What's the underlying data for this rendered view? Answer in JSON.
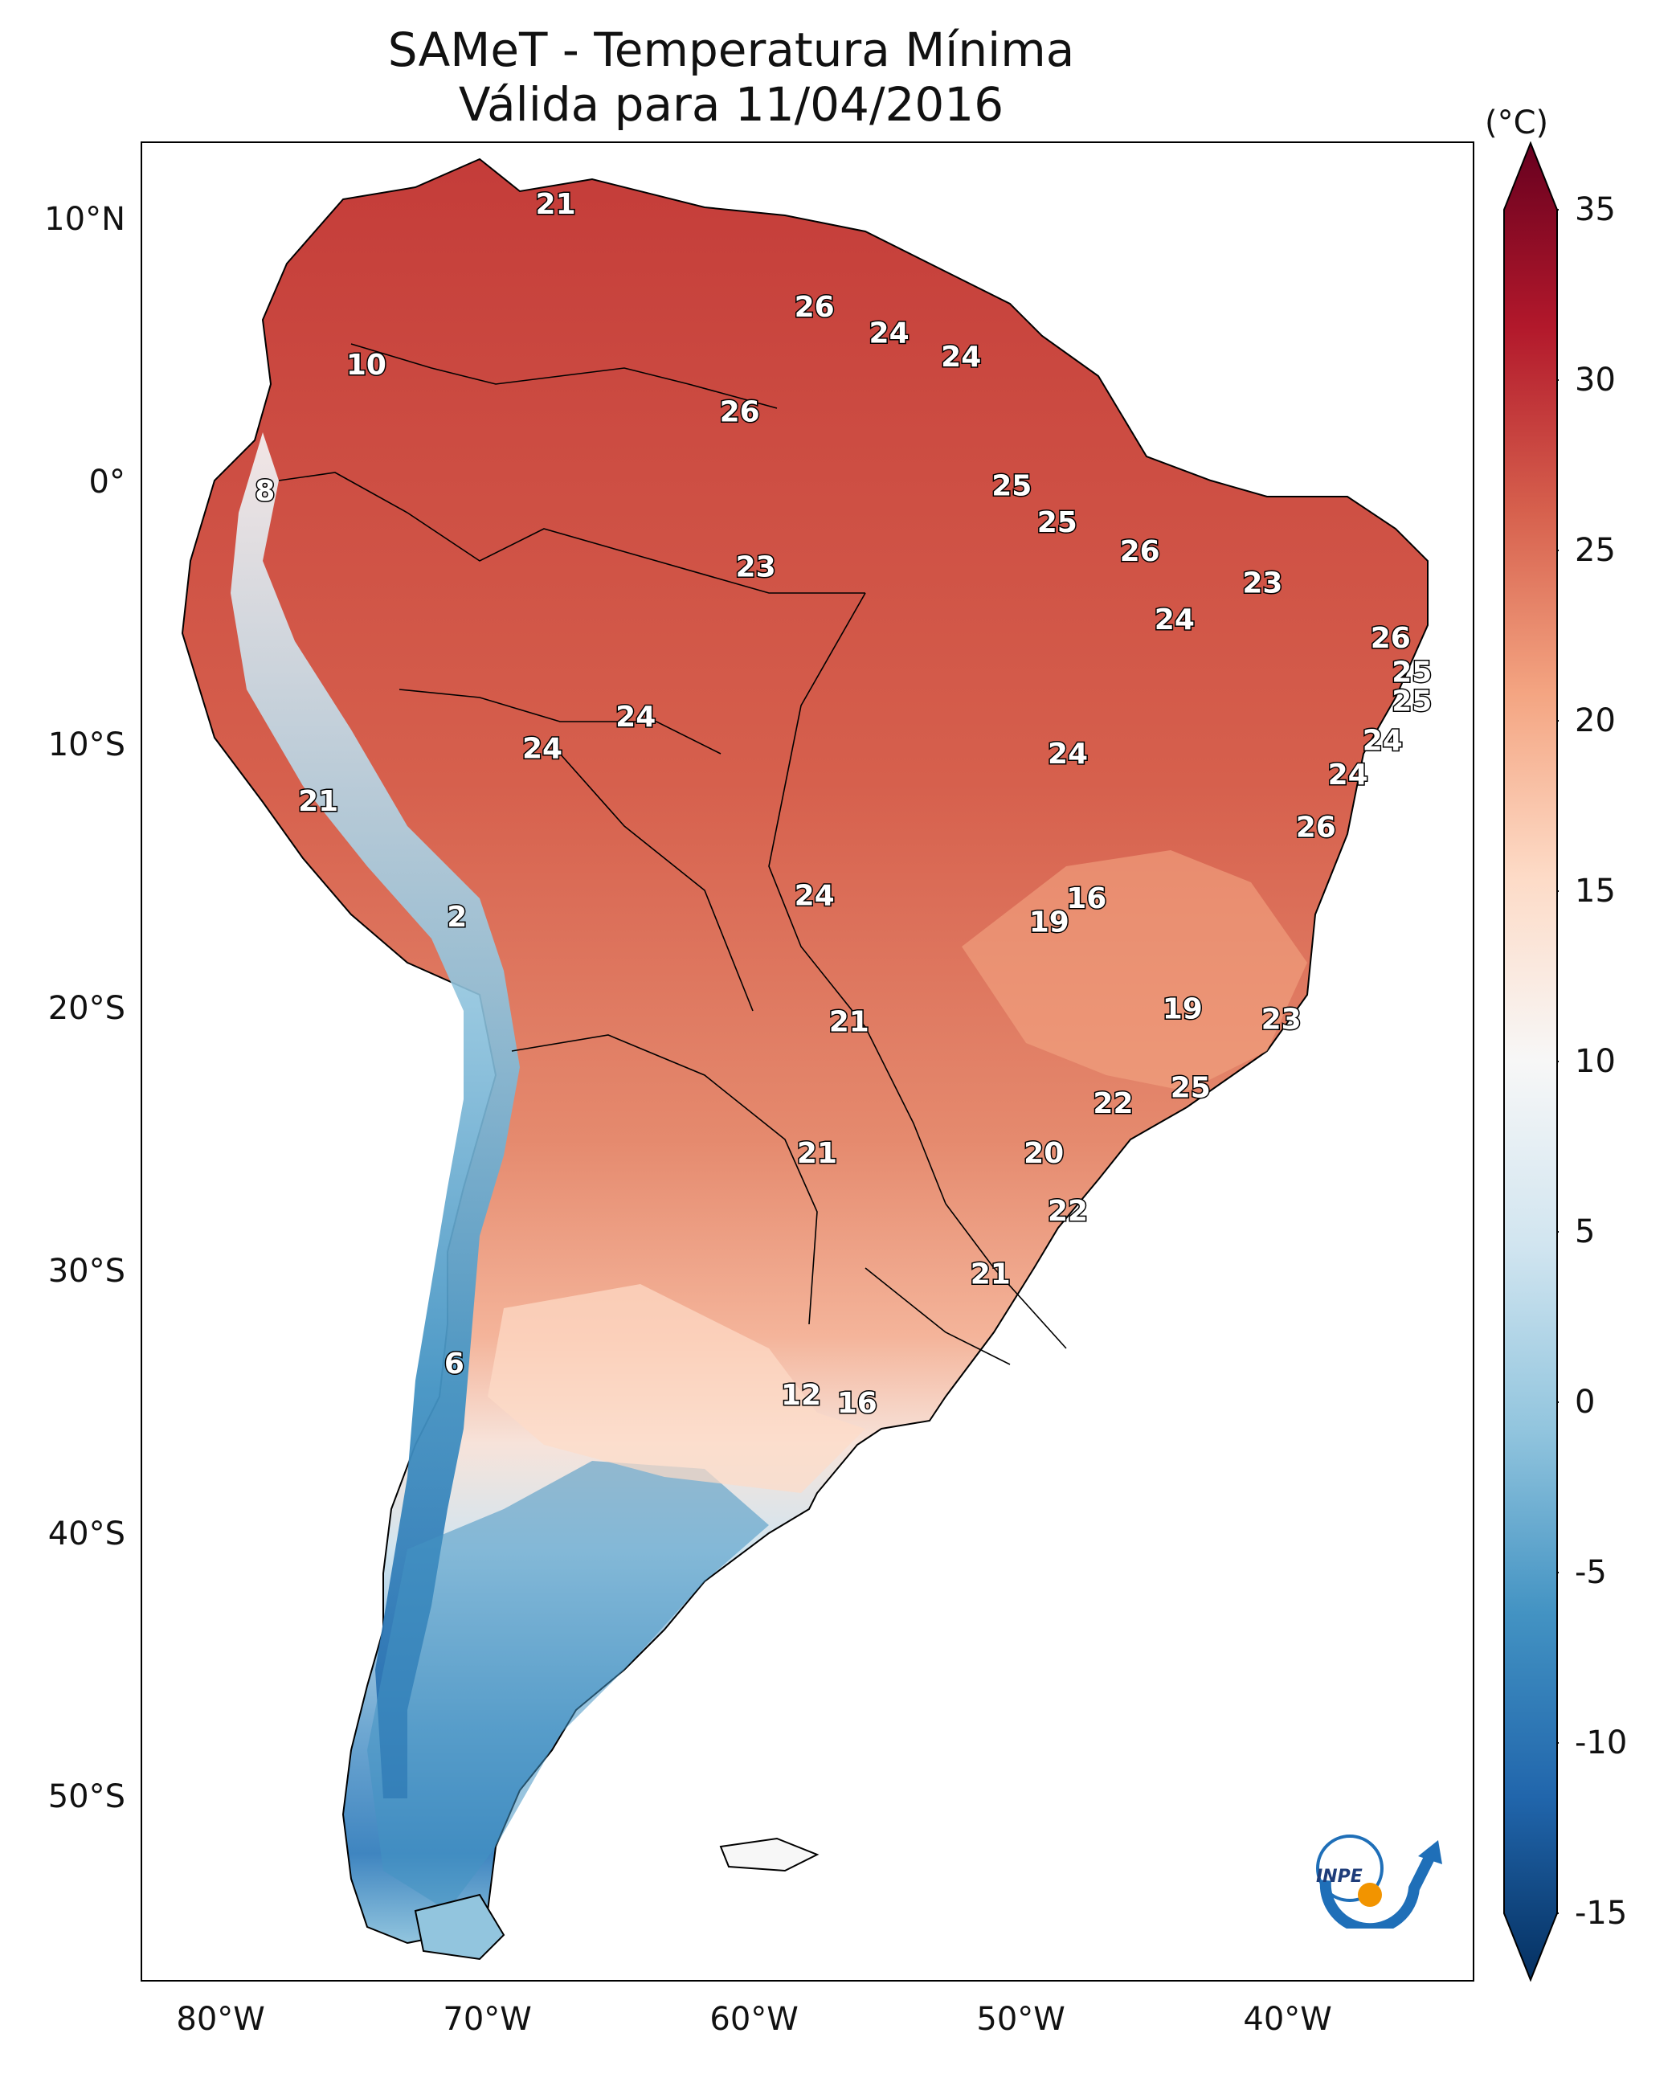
{
  "title": {
    "line1": "SAMeT - Temperatura Mínima",
    "line2": "Válida para 11/04/2016"
  },
  "map": {
    "lon_range": [
      -83,
      -33
    ],
    "lat_range": [
      -57,
      13
    ],
    "lat_ticks": [
      {
        "lat": 10,
        "label": "10°N"
      },
      {
        "lat": 0,
        "label": "0°"
      },
      {
        "lat": -10,
        "label": "10°S"
      },
      {
        "lat": -20,
        "label": "20°S"
      },
      {
        "lat": -30,
        "label": "30°S"
      },
      {
        "lat": -40,
        "label": "40°S"
      },
      {
        "lat": -50,
        "label": "50°S"
      }
    ],
    "lon_ticks": [
      {
        "lon": -80,
        "label": "80°W"
      },
      {
        "lon": -70,
        "label": "70°W"
      },
      {
        "lon": -60,
        "label": "60°W"
      },
      {
        "lon": -50,
        "label": "50°W"
      },
      {
        "lon": -40,
        "label": "40°W"
      }
    ],
    "station_values": [
      {
        "lon": -67.5,
        "lat": 10.7,
        "label": "21"
      },
      {
        "lon": -57.8,
        "lat": 6.8,
        "label": "26"
      },
      {
        "lon": -55.0,
        "lat": 5.8,
        "label": "24"
      },
      {
        "lon": -52.3,
        "lat": 4.9,
        "label": "24"
      },
      {
        "lon": -74.6,
        "lat": 4.6,
        "label": "10"
      },
      {
        "lon": -60.6,
        "lat": 2.8,
        "label": "26"
      },
      {
        "lon": -78.4,
        "lat": -0.2,
        "label": "8"
      },
      {
        "lon": -50.4,
        "lat": 0.0,
        "label": "25"
      },
      {
        "lon": -48.7,
        "lat": -1.4,
        "label": "25"
      },
      {
        "lon": -60.0,
        "lat": -3.1,
        "label": "23"
      },
      {
        "lon": -45.6,
        "lat": -2.5,
        "label": "26"
      },
      {
        "lon": -41.0,
        "lat": -3.7,
        "label": "23"
      },
      {
        "lon": -44.3,
        "lat": -5.1,
        "label": "24"
      },
      {
        "lon": -36.2,
        "lat": -5.8,
        "label": "26"
      },
      {
        "lon": -35.4,
        "lat": -7.1,
        "label": "25"
      },
      {
        "lon": -35.4,
        "lat": -8.2,
        "label": "25"
      },
      {
        "lon": -36.5,
        "lat": -9.7,
        "label": "24"
      },
      {
        "lon": -37.8,
        "lat": -11.0,
        "label": "24"
      },
      {
        "lon": -64.5,
        "lat": -8.8,
        "label": "24"
      },
      {
        "lon": -68.0,
        "lat": -10.0,
        "label": "24"
      },
      {
        "lon": -48.3,
        "lat": -10.2,
        "label": "24"
      },
      {
        "lon": -76.4,
        "lat": -12.0,
        "label": "21"
      },
      {
        "lon": -39.0,
        "lat": -13.0,
        "label": "26"
      },
      {
        "lon": -57.8,
        "lat": -15.6,
        "label": "24"
      },
      {
        "lon": -47.6,
        "lat": -15.7,
        "label": "16"
      },
      {
        "lon": -49.0,
        "lat": -16.6,
        "label": "19"
      },
      {
        "lon": -71.2,
        "lat": -16.4,
        "label": "2"
      },
      {
        "lon": -44.0,
        "lat": -19.9,
        "label": "19"
      },
      {
        "lon": -40.3,
        "lat": -20.3,
        "label": "23"
      },
      {
        "lon": -56.5,
        "lat": -20.4,
        "label": "21"
      },
      {
        "lon": -43.7,
        "lat": -22.9,
        "label": "25"
      },
      {
        "lon": -46.6,
        "lat": -23.5,
        "label": "22"
      },
      {
        "lon": -57.7,
        "lat": -25.4,
        "label": "21"
      },
      {
        "lon": -49.2,
        "lat": -25.4,
        "label": "20"
      },
      {
        "lon": -48.3,
        "lat": -27.6,
        "label": "22"
      },
      {
        "lon": -51.2,
        "lat": -30.0,
        "label": "21"
      },
      {
        "lon": -71.3,
        "lat": -33.4,
        "label": "6"
      },
      {
        "lon": -58.3,
        "lat": -34.6,
        "label": "12"
      },
      {
        "lon": -56.2,
        "lat": -34.9,
        "label": "16"
      }
    ]
  },
  "colorbar": {
    "unit": "(°C)",
    "min": -17.5,
    "max": 37.5,
    "ticks": [
      {
        "value": 35,
        "label": "35"
      },
      {
        "value": 30,
        "label": "30"
      },
      {
        "value": 25,
        "label": "25"
      },
      {
        "value": 20,
        "label": "20"
      },
      {
        "value": 15,
        "label": "15"
      },
      {
        "value": 10,
        "label": "10"
      },
      {
        "value": 5,
        "label": "5"
      },
      {
        "value": 0,
        "label": "0"
      },
      {
        "value": -5,
        "label": "-5"
      },
      {
        "value": -10,
        "label": "-10"
      },
      {
        "value": -15,
        "label": "-15"
      }
    ],
    "colors": [
      "#053061",
      "#2166ac",
      "#4393c3",
      "#92c5de",
      "#d1e5f0",
      "#f7f7f7",
      "#fddbc7",
      "#f4a582",
      "#d6604d",
      "#b2182b",
      "#67001f"
    ]
  },
  "logo": {
    "text": "INPE",
    "blue": "#1f6fb8",
    "orange": "#f29400"
  }
}
